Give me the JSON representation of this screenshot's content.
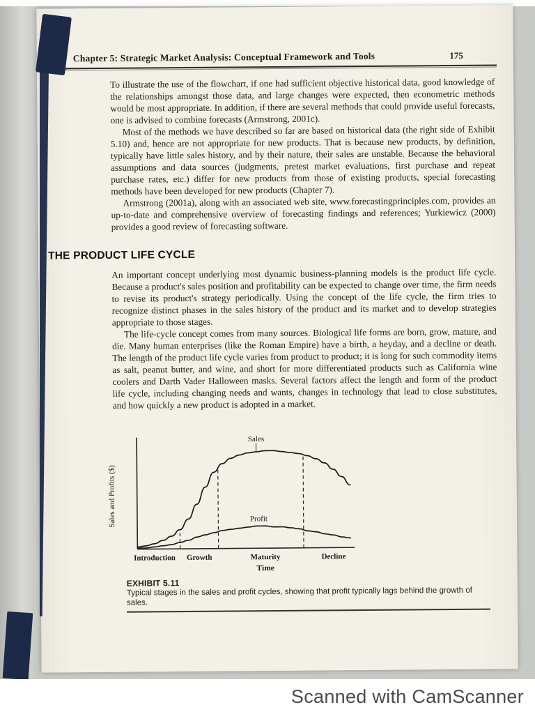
{
  "colors": {
    "scan_bg": "#c7c9c5",
    "page_bg": "#f3f0e8",
    "ink": "#232119",
    "spine_navy": "#1c2a47",
    "watermark_gray": "#4b4b4d"
  },
  "header": {
    "chapter_title": "Chapter 5: Strategic Market Analysis: Conceptual Framework and Tools",
    "page_number": "175"
  },
  "intro_paragraphs": [
    {
      "text": "To illustrate the use of the flowchart, if one had sufficient objective historical data, good knowledge of the relationships amongst those data, and large changes were expected, then econometric methods would be most appropriate. In addition, if there are several methods that could provide useful forecasts, one is advised to combine forecasts (Armstrong, 2001c)."
    },
    {
      "text": "Most of the methods we have described so far are based on historical data (the right side of Exhibit 5.10) and, hence are not appropriate for new products. That is because new products, by definition, typically have little sales history, and by their nature, their sales are unstable. Because the behavioral assumptions and data sources (judgments, pretest market evaluations, first purchase and repeat purchase rates, etc.) differ for new products from those of existing products, special forecasting methods have been developed for new products (Chapter 7)."
    },
    {
      "text": "Armstrong (2001a), along with an associated web site, www.forecastingprinciples.com, provides an up-to-date and comprehensive overview of forecasting findings and references; Yurkiewicz (2000) provides a good review of forecasting software."
    }
  ],
  "section": {
    "heading": "THE PRODUCT LIFE CYCLE",
    "paragraphs": [
      {
        "text": "An important concept underlying most dynamic business-planning models is the product life cycle. Because a product's sales position and profitability can be expected to change over time, the firm needs to revise its product's strategy periodically. Using the concept of the life cycle, the firm tries to recognize distinct phases in the sales history of the product and its market and to develop strategies appropriate to those stages."
      },
      {
        "text": "The life-cycle concept comes from many sources. Biological life forms are born, grow, mature, and die. Many human enterprises (like the Roman Empire) have a birth, a heyday, and a decline or death. The length of the product life cycle varies from product to product; it is long for such commodity items as salt, peanut butter, and wine, and short for more differentiated products such as California wine coolers and Darth Vader Halloween masks. Several factors affect the length and form of the product life cycle, including changing needs and wants, changes in technology that lead to close substitutes, and how quickly a new product is adopted in a market."
      }
    ]
  },
  "exhibit": {
    "label": "EXHIBIT 5.11",
    "caption": "Typical stages in the sales and profit cycles, showing that profit typically lags behind the growth of sales."
  },
  "footer": {
    "watermark": "Scanned with CamScanner"
  },
  "chart_data": {
    "type": "line",
    "title": "",
    "xlabel": "Time",
    "ylabel": "Sales and Profits ($)",
    "ylim": [
      0,
      100
    ],
    "xlim": [
      0,
      100
    ],
    "grid": false,
    "legend": "inline-labels",
    "x": [
      0,
      4,
      8,
      12,
      16,
      20,
      24,
      28,
      32,
      36,
      40,
      44,
      48,
      52,
      56,
      60,
      64,
      68,
      72,
      76,
      80,
      84,
      88,
      92,
      96,
      100
    ],
    "series": [
      {
        "name": "Sales",
        "label_x": 56,
        "values": [
          2,
          3,
          5,
          8,
          12,
          18,
          28,
          42,
          58,
          72,
          80,
          85,
          88,
          90,
          91,
          92,
          92,
          91,
          90,
          89,
          87,
          84,
          80,
          74,
          67,
          59
        ]
      },
      {
        "name": "Profit",
        "label_x": 57,
        "values": [
          1,
          1,
          2,
          3,
          4,
          6,
          8,
          11,
          13,
          15,
          17,
          18,
          19,
          20,
          21,
          21,
          20,
          20,
          19,
          18,
          16,
          15,
          13,
          12,
          10,
          9
        ]
      }
    ],
    "stages": [
      "Introduction",
      "Growth",
      "Maturity",
      "Decline"
    ],
    "stage_label_x": [
      8,
      29,
      60,
      92
    ],
    "stage_boundaries_x": [
      20,
      38,
      78
    ],
    "xlabel_x": 60
  }
}
